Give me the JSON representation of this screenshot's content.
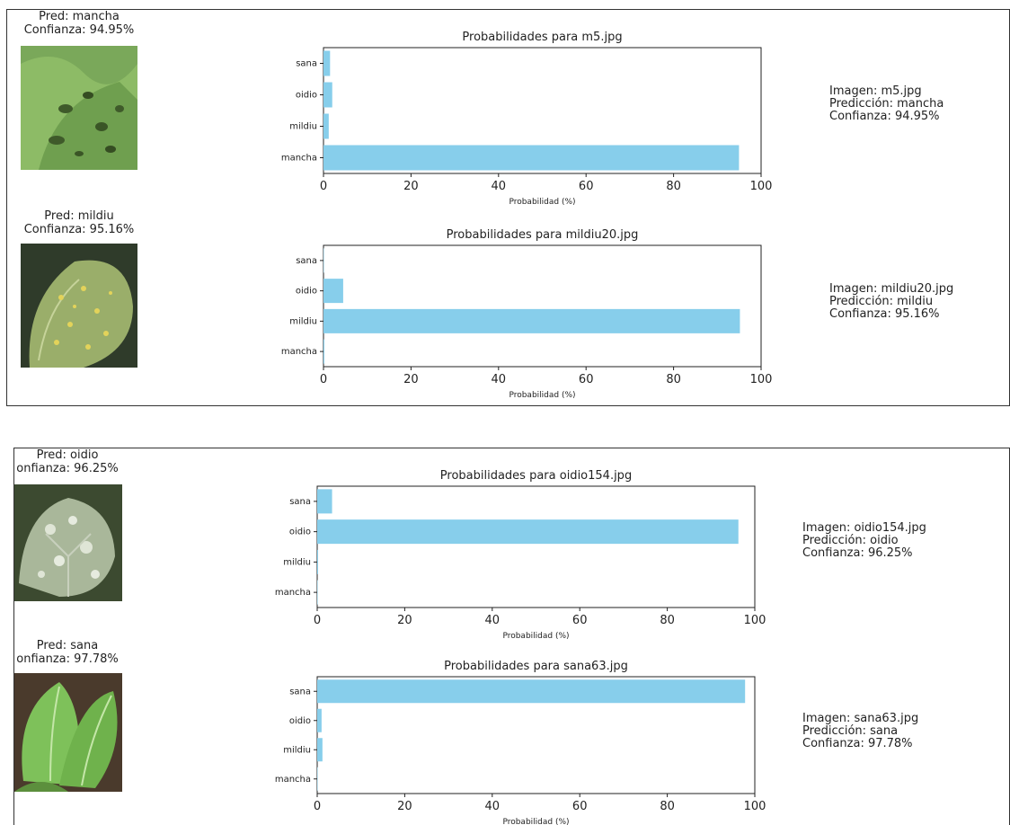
{
  "colors": {
    "bar": "#87ceeb",
    "axis": "#222222"
  },
  "panels": [
    {
      "rows": [
        {
          "pred_line": "Pred: mancha",
          "conf_line": "Confianza: 94.95%",
          "thumbnail_icon": "leaf-spots-icon",
          "info": [
            "Imagen: m5.jpg",
            "Predicción: mancha",
            "Confianza: 94.95%"
          ]
        },
        {
          "pred_line": "Pred: mildiu",
          "conf_line": "Confianza: 95.16%",
          "thumbnail_icon": "leaf-yellow-spots-icon",
          "info": [
            "Imagen: mildiu20.jpg",
            "Predicción: mildiu",
            "Confianza: 95.16%"
          ]
        }
      ]
    },
    {
      "rows": [
        {
          "pred_line": "Pred: oidio",
          "conf_line": "onfianza: 96.25%",
          "thumbnail_icon": "leaf-powdery-icon",
          "info": [
            "Imagen: oidio154.jpg",
            "Predicción: oidio",
            "Confianza: 96.25%"
          ]
        },
        {
          "pred_line": "Pred: sana",
          "conf_line": "onfianza: 97.78%",
          "thumbnail_icon": "leaf-healthy-icon",
          "info": [
            "Imagen: sana63.jpg",
            "Predicción: sana",
            "Confianza: 97.78%"
          ]
        }
      ]
    }
  ],
  "chart_data": [
    {
      "type": "bar",
      "orientation": "horizontal",
      "title": "Probabilidades para m5.jpg",
      "xlabel": "Probabilidad (%)",
      "ylabel": "",
      "categories": [
        "sana",
        "oidio",
        "mildiu",
        "mancha"
      ],
      "values": [
        1.5,
        2.0,
        1.2,
        94.95
      ],
      "xlim": [
        0,
        100
      ],
      "xticks": [
        0,
        20,
        40,
        60,
        80,
        100
      ],
      "grid": false
    },
    {
      "type": "bar",
      "orientation": "horizontal",
      "title": "Probabilidades para mildiu20.jpg",
      "xlabel": "Probabilidad (%)",
      "ylabel": "",
      "categories": [
        "sana",
        "oidio",
        "mildiu",
        "mancha"
      ],
      "values": [
        0.1,
        4.5,
        95.16,
        0.2
      ],
      "xlim": [
        0,
        100
      ],
      "xticks": [
        0,
        20,
        40,
        60,
        80,
        100
      ],
      "grid": false
    },
    {
      "type": "bar",
      "orientation": "horizontal",
      "title": "Probabilidades para oidio154.jpg",
      "xlabel": "Probabilidad (%)",
      "ylabel": "",
      "categories": [
        "sana",
        "oidio",
        "mildiu",
        "mancha"
      ],
      "values": [
        3.4,
        96.25,
        0.2,
        0.1
      ],
      "xlim": [
        0,
        100
      ],
      "xticks": [
        0,
        20,
        40,
        60,
        80,
        100
      ],
      "grid": false
    },
    {
      "type": "bar",
      "orientation": "horizontal",
      "title": "Probabilidades para sana63.jpg",
      "xlabel": "Probabilidad (%)",
      "ylabel": "",
      "categories": [
        "sana",
        "oidio",
        "mildiu",
        "mancha"
      ],
      "values": [
        97.78,
        1.0,
        1.2,
        0.1
      ],
      "xlim": [
        0,
        100
      ],
      "xticks": [
        0,
        20,
        40,
        60,
        80,
        100
      ],
      "grid": false
    }
  ]
}
